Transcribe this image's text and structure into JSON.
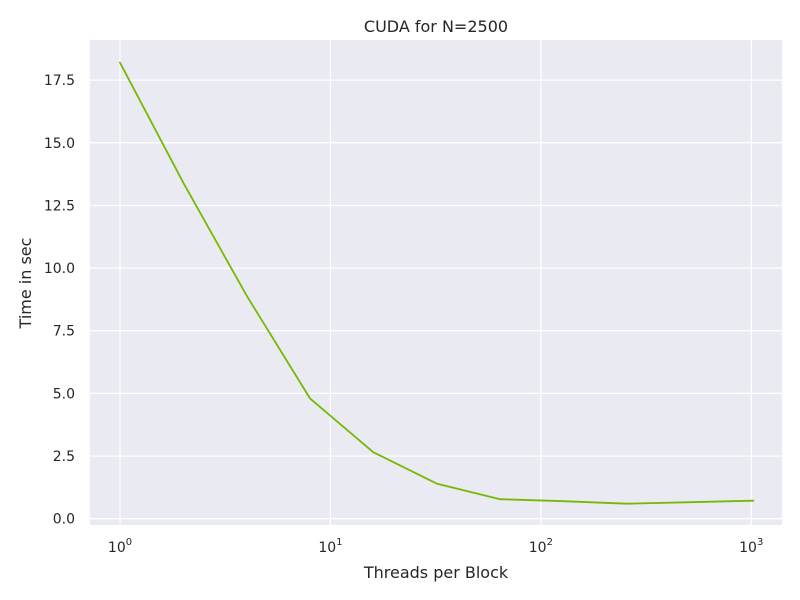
{
  "colors": {
    "plot_background": "#eaeaf2",
    "grid": "#ffffff",
    "line": "#76b900",
    "text": "#262626"
  },
  "chart_data": {
    "type": "line",
    "title": "CUDA for N=2500",
    "xlabel": "Threads per Block",
    "ylabel": "Time in sec",
    "x_scale": "log",
    "xlim": [
      0.72,
      1400
    ],
    "ylim": [
      -0.25,
      19.1
    ],
    "grid": true,
    "x_ticks": [
      {
        "value": 1,
        "base": "10",
        "exp": "0"
      },
      {
        "value": 10,
        "base": "10",
        "exp": "1"
      },
      {
        "value": 100,
        "base": "10",
        "exp": "2"
      },
      {
        "value": 1000,
        "base": "10",
        "exp": "3"
      }
    ],
    "y_ticks": [
      {
        "value": 0,
        "label": "0.0"
      },
      {
        "value": 2.5,
        "label": "2.5"
      },
      {
        "value": 5,
        "label": "5.0"
      },
      {
        "value": 7.5,
        "label": "7.5"
      },
      {
        "value": 10,
        "label": "10.0"
      },
      {
        "value": 12.5,
        "label": "12.5"
      },
      {
        "value": 15,
        "label": "15.0"
      },
      {
        "value": 17.5,
        "label": "17.5"
      }
    ],
    "series": [
      {
        "x": [
          1,
          2,
          4,
          8,
          16,
          32,
          64,
          128,
          256,
          512,
          1024
        ],
        "y": [
          18.2,
          13.4,
          8.9,
          4.8,
          2.65,
          1.4,
          0.78,
          0.7,
          0.6,
          0.66,
          0.72
        ]
      }
    ]
  }
}
